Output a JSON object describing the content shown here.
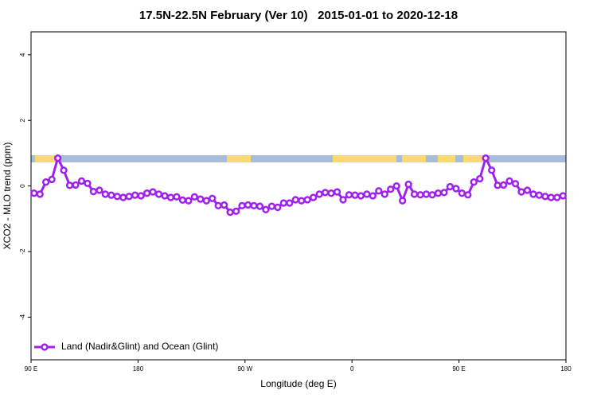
{
  "chart_data": {
    "type": "line",
    "title": "17.5N-22.5N February (Ver 10)   2015-01-01 to 2020-12-18",
    "x_label": "Longitude (deg E)",
    "y_label": "XCO2 - MLO trend (ppm)",
    "xlim": [
      90,
      540
    ],
    "ylim": [
      -5.3,
      4.7
    ],
    "xticks": [
      {
        "value": 90,
        "label": "90 E"
      },
      180,
      {
        "value": 270,
        "label": "90 W"
      },
      {
        "value": 360,
        "label": "0"
      },
      {
        "value": 450,
        "label": "90 E"
      },
      {
        "value": 540,
        "label": "180"
      }
    ],
    "yticks": [
      -4,
      -2,
      0,
      2,
      4
    ],
    "legend": "bottom-left",
    "x": [
      92.5,
      97.5,
      102.5,
      107.5,
      112.5,
      117.5,
      122.5,
      127.5,
      132.5,
      137.5,
      142.5,
      147.5,
      152.5,
      157.5,
      162.5,
      167.5,
      172.5,
      177.5,
      182.5,
      187.5,
      192.5,
      197.5,
      202.5,
      207.5,
      212.5,
      217.5,
      222.5,
      227.5,
      232.5,
      237.5,
      242.5,
      247.5,
      252.5,
      257.5,
      262.5,
      267.5,
      272.5,
      277.5,
      282.5,
      287.5,
      292.5,
      297.5,
      302.5,
      307.5,
      312.5,
      317.5,
      322.5,
      327.5,
      332.5,
      337.5,
      342.5,
      347.5,
      352.5,
      357.5,
      362.5,
      367.5,
      372.5,
      377.5,
      382.5,
      387.5,
      392.5,
      397.5,
      402.5,
      407.5,
      412.5,
      417.5,
      422.5,
      427.5,
      432.5,
      437.5,
      442.5,
      447.5,
      452.5,
      457.5,
      462.5,
      467.5,
      472.5,
      477.5,
      482.5,
      487.5,
      492.5,
      497.5,
      502.5,
      507.5,
      512.5,
      517.5,
      522.5,
      527.5,
      532.5,
      537.5
    ],
    "series": [
      {
        "name": "Land (Nadir&Glint) and Ocean (Glint)",
        "color": "#a020f0",
        "values": [
          -0.22,
          -0.25,
          0.12,
          0.2,
          0.85,
          0.48,
          0.02,
          0.03,
          0.15,
          0.08,
          -0.17,
          -0.13,
          -0.25,
          -0.28,
          -0.32,
          -0.35,
          -0.32,
          -0.28,
          -0.3,
          -0.22,
          -0.18,
          -0.25,
          -0.3,
          -0.35,
          -0.33,
          -0.43,
          -0.45,
          -0.33,
          -0.4,
          -0.45,
          -0.38,
          -0.6,
          -0.58,
          -0.8,
          -0.77,
          -0.6,
          -0.58,
          -0.6,
          -0.62,
          -0.72,
          -0.62,
          -0.65,
          -0.52,
          -0.52,
          -0.42,
          -0.45,
          -0.42,
          -0.35,
          -0.25,
          -0.2,
          -0.22,
          -0.18,
          -0.42,
          -0.27,
          -0.28,
          -0.3,
          -0.25,
          -0.3,
          -0.15,
          -0.25,
          -0.1,
          0.0,
          -0.45,
          0.05,
          -0.25,
          -0.27,
          -0.25,
          -0.27,
          -0.22,
          -0.2,
          -0.02,
          -0.08,
          -0.22,
          -0.27,
          0.12,
          0.22,
          0.85,
          0.48,
          0.02,
          0.03,
          0.15,
          0.07,
          -0.18,
          -0.13,
          -0.25,
          -0.28,
          -0.32,
          -0.35,
          -0.35,
          -0.3
        ]
      }
    ]
  }
}
